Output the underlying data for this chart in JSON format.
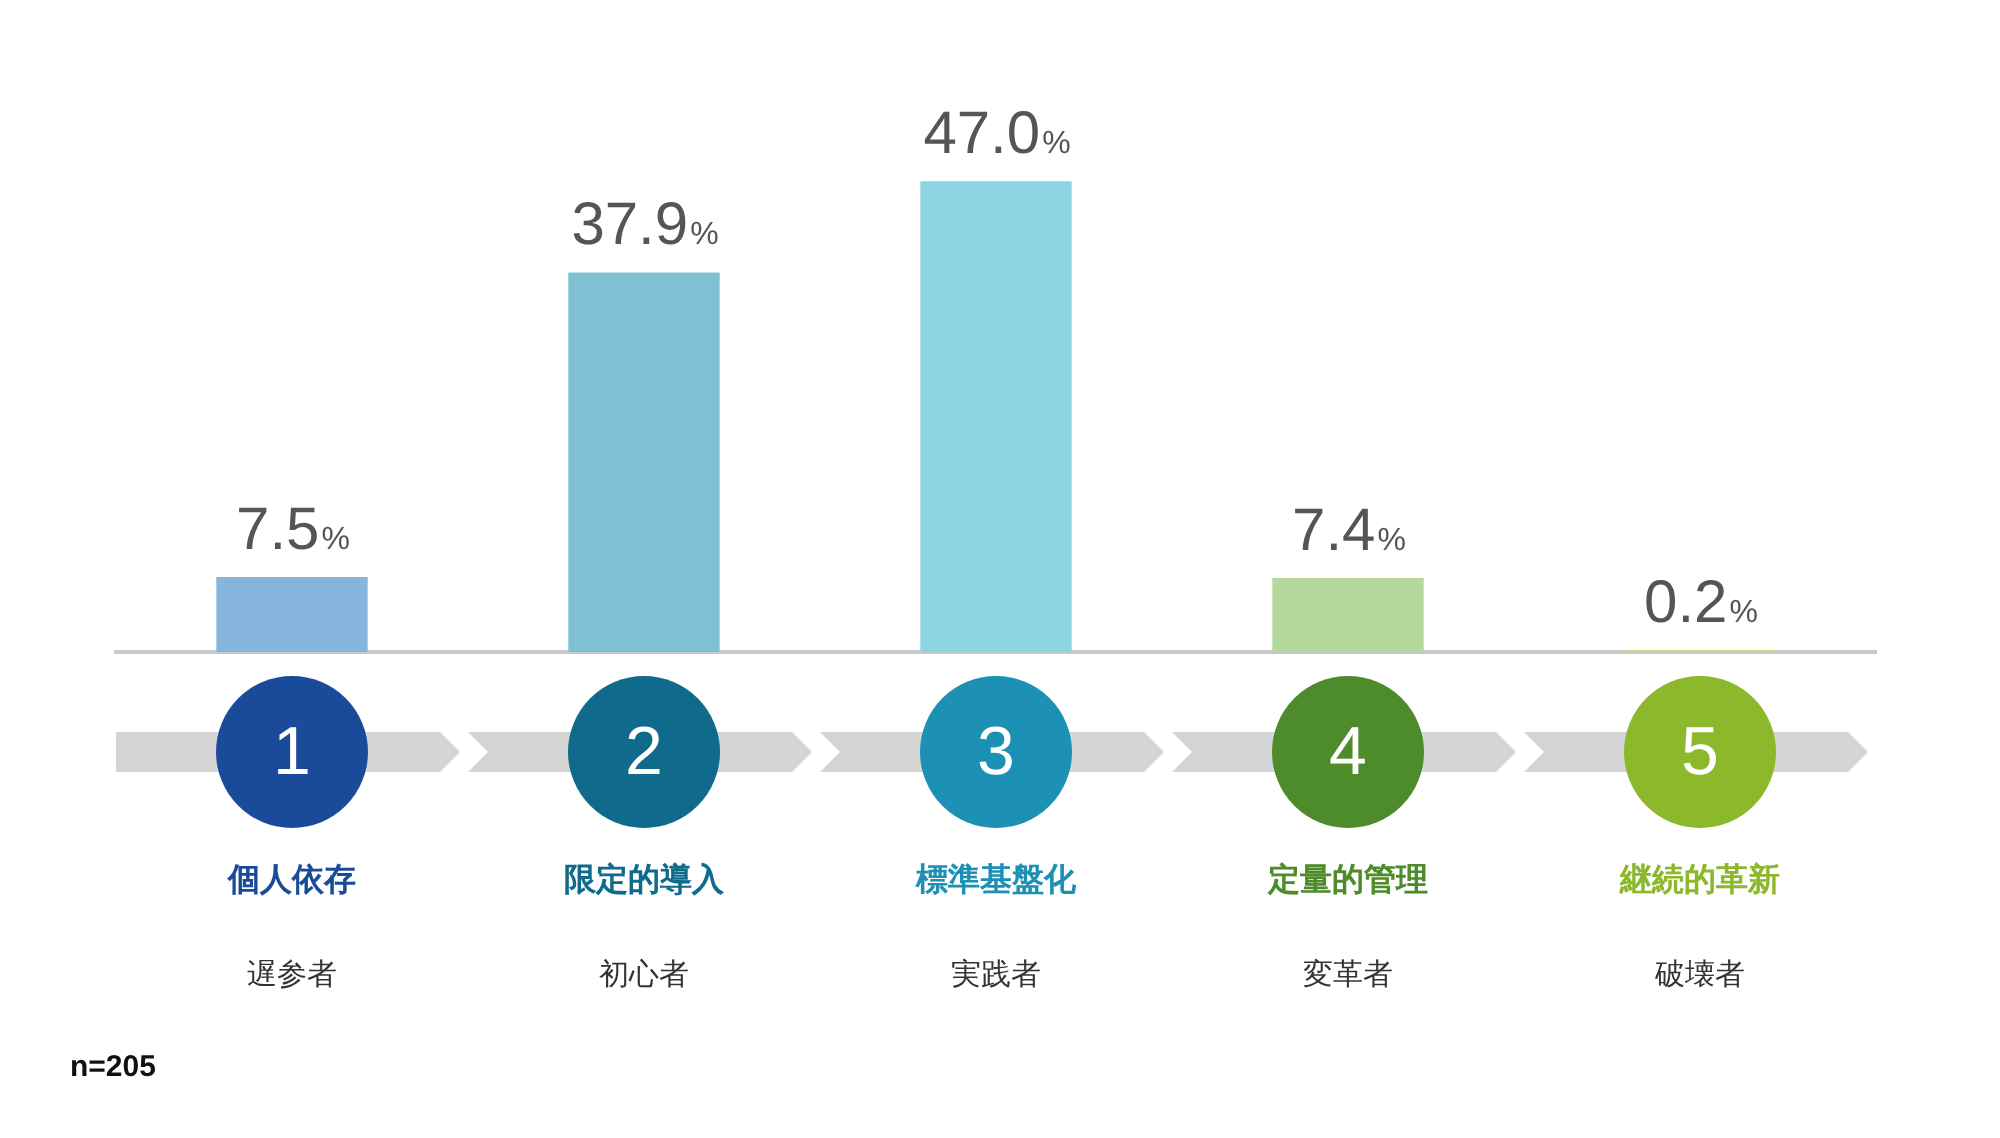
{
  "chart_data": {
    "type": "bar",
    "categories": [
      "個人依存",
      "限定的導入",
      "標準基盤化",
      "定量的管理",
      "継続的革新"
    ],
    "values": [
      7.5,
      37.9,
      47.0,
      7.4,
      0.2
    ],
    "colors": [
      "#85b4dc",
      "#7fc1d3",
      "#8dd5e3",
      "#b5d99c",
      "#c5dd8a"
    ],
    "value_labels": [
      "7.5%",
      "37.9%",
      "47.0%",
      "7.4%",
      "0.2%"
    ],
    "grid": false,
    "legend": false,
    "annotations": [
      "1",
      "2",
      "3",
      "4",
      "5",
      "遅参者",
      "初心者",
      "実践者",
      "変革者",
      "破壊者",
      "n=205"
    ]
  }
}
